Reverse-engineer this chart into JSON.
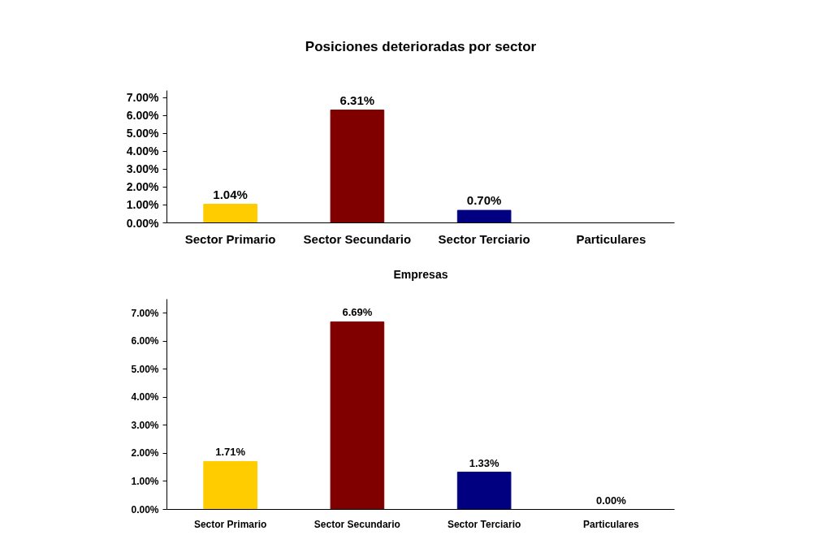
{
  "chart_data": [
    {
      "type": "bar",
      "title": "Posiciones deterioradas por sector",
      "categories": [
        "Sector Primario",
        "Sector Secundario",
        "Sector Terciario",
        "Particulares"
      ],
      "colors": [
        "#ffcc00",
        "#800000",
        "#000080",
        "#666699"
      ],
      "values": [
        1.04,
        6.31,
        0.7,
        null
      ],
      "value_labels": [
        "1.04%",
        "6.31%",
        "0.70%",
        null
      ],
      "ylim": [
        0,
        7.4
      ],
      "yticks": [
        {
          "value": 0,
          "label": "0.00%"
        },
        {
          "value": 1,
          "label": "1.00%"
        },
        {
          "value": 2,
          "label": "2.00%"
        },
        {
          "value": 3,
          "label": "3.00%"
        },
        {
          "value": 4,
          "label": "4.00%"
        },
        {
          "value": 5,
          "label": "5.00%"
        },
        {
          "value": 6,
          "label": "6.00%"
        },
        {
          "value": 7,
          "label": "7.00%"
        }
      ],
      "grid": false
    },
    {
      "type": "bar",
      "title": "Empresas",
      "categories": [
        "Sector Primario",
        "Sector Secundario",
        "Sector Terciario",
        "Particulares"
      ],
      "colors": [
        "#ffcc00",
        "#800000",
        "#000080",
        "#666699"
      ],
      "values": [
        1.71,
        6.69,
        1.33,
        0.0
      ],
      "value_labels": [
        "1.71%",
        "6.69%",
        "1.33%",
        "0.00%"
      ],
      "ylim": [
        0,
        7.5
      ],
      "yticks": [
        {
          "value": 0,
          "label": "0.00%"
        },
        {
          "value": 1,
          "label": "1.00%"
        },
        {
          "value": 2,
          "label": "2.00%"
        },
        {
          "value": 3,
          "label": "3.00%"
        },
        {
          "value": 4,
          "label": "4.00%"
        },
        {
          "value": 5,
          "label": "5.00%"
        },
        {
          "value": 6,
          "label": "6.00%"
        },
        {
          "value": 7,
          "label": "7.00%"
        }
      ],
      "grid": false
    }
  ]
}
